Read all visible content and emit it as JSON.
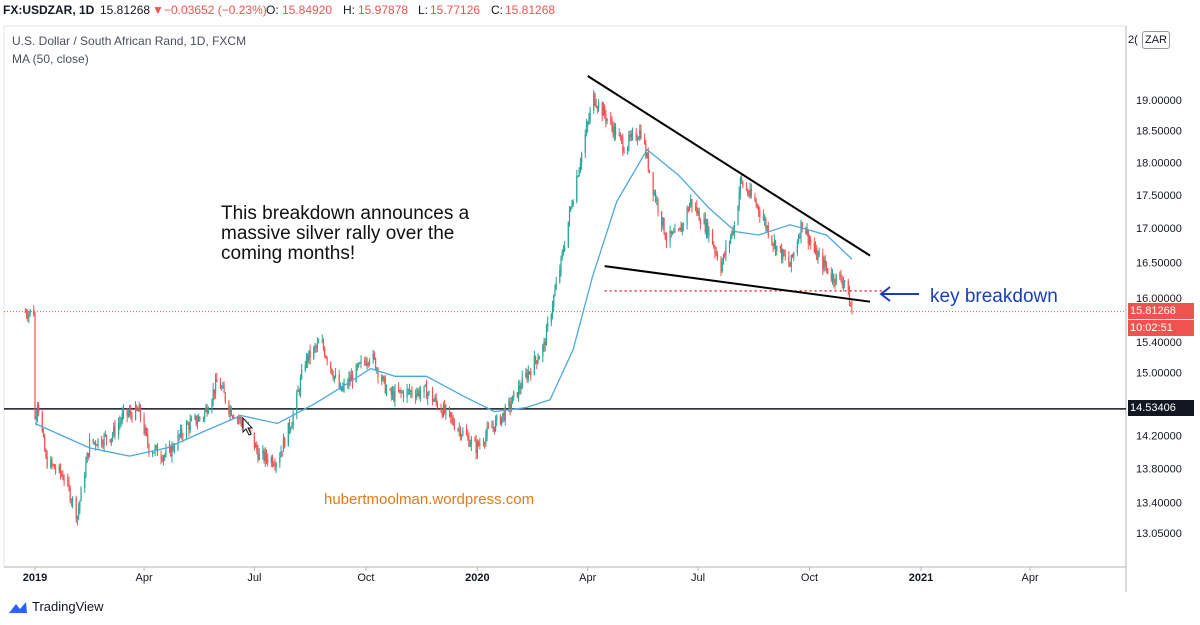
{
  "header": {
    "symbol": "FX:USDZAR, 1D",
    "last": "15.81268",
    "change_arrow": "▼",
    "change": "−0.03652 (−0.23%)",
    "o_label": "O:",
    "o_value": "15.84920",
    "h_label": "H:",
    "h_value": "15.97878",
    "l_label": "L:",
    "l_value": "15.77126",
    "c_label": "C:",
    "c_value": "15.81268"
  },
  "legend": {
    "title": "U.S. Dollar / South African Rand, 1D, FXCM",
    "indicator": "MA (50, close)"
  },
  "annotations": {
    "message_line1": "This breakdown announces a",
    "message_line2": "massive silver rally over the",
    "message_line3": "coming months!",
    "arrow_label": "key breakdown",
    "watermark": "hubertmoolman.wordpress.com"
  },
  "price_axis": {
    "currency": "ZAR",
    "top_cut_label": "2(",
    "ticks": [
      "19.00000",
      "18.50000",
      "18.00000",
      "17.50000",
      "17.00000",
      "16.50000",
      "16.00000",
      "15.40000",
      "15.00000",
      "14.20000",
      "13.80000",
      "13.40000",
      "13.05000"
    ]
  },
  "price_tags": {
    "last_price": "15.81268",
    "countdown": "10:02:51",
    "hline_price": "14.53406"
  },
  "time_axis": {
    "labels": [
      "2019",
      "Apr",
      "Jul",
      "Oct",
      "2020",
      "Apr",
      "Jul",
      "Oct",
      "2021",
      "Apr"
    ]
  },
  "branding": {
    "logo_text": "TradingView"
  },
  "colors": {
    "up": "#26a69a",
    "down": "#ef5350",
    "ma": "#4fa8dc",
    "annotation_blue": "#1a3fb5",
    "watermark": "#e07b1a",
    "hline": "#131722",
    "last_price": "#ef5350"
  },
  "chart_data": {
    "type": "candlestick",
    "symbol": "USDZAR",
    "interval": "1D",
    "y_range": [
      12.8,
      20.0
    ],
    "x_range": [
      "2018-12-15",
      "2021-06-30"
    ],
    "price_scale": "logarithmic",
    "ohlc_close_path": [
      [
        "2019-01-01",
        14.4
      ],
      [
        "2019-01-03",
        14.65
      ],
      [
        "2019-01-10",
        13.9
      ],
      [
        "2019-01-25",
        13.7
      ],
      [
        "2019-02-05",
        13.25
      ],
      [
        "2019-02-15",
        14.1
      ],
      [
        "2019-03-05",
        14.2
      ],
      [
        "2019-03-15",
        14.45
      ],
      [
        "2019-03-28",
        14.5
      ],
      [
        "2019-04-05",
        14.05
      ],
      [
        "2019-04-20",
        13.95
      ],
      [
        "2019-05-05",
        14.3
      ],
      [
        "2019-05-20",
        14.45
      ],
      [
        "2019-06-01",
        14.9
      ],
      [
        "2019-06-10",
        14.55
      ],
      [
        "2019-06-25",
        14.3
      ],
      [
        "2019-07-05",
        13.95
      ],
      [
        "2019-07-20",
        13.9
      ],
      [
        "2019-08-01",
        14.4
      ],
      [
        "2019-08-12",
        15.15
      ],
      [
        "2019-08-25",
        15.4
      ],
      [
        "2019-09-10",
        14.75
      ],
      [
        "2019-09-25",
        15.05
      ],
      [
        "2019-10-05",
        15.25
      ],
      [
        "2019-10-20",
        14.7
      ],
      [
        "2019-11-05",
        14.75
      ],
      [
        "2019-11-20",
        14.75
      ],
      [
        "2019-12-10",
        14.4
      ],
      [
        "2019-12-31",
        14.05
      ],
      [
        "2020-01-10",
        14.25
      ],
      [
        "2020-01-25",
        14.5
      ],
      [
        "2020-02-10",
        14.95
      ],
      [
        "2020-02-25",
        15.35
      ],
      [
        "2020-03-10",
        16.5
      ],
      [
        "2020-03-20",
        17.5
      ],
      [
        "2020-04-01",
        18.6
      ],
      [
        "2020-04-06",
        19.05
      ],
      [
        "2020-04-20",
        18.6
      ],
      [
        "2020-05-01",
        18.25
      ],
      [
        "2020-05-15",
        18.5
      ],
      [
        "2020-05-25",
        17.6
      ],
      [
        "2020-06-05",
        16.85
      ],
      [
        "2020-06-15",
        16.9
      ],
      [
        "2020-06-25",
        17.4
      ],
      [
        "2020-07-10",
        16.95
      ],
      [
        "2020-07-20",
        16.45
      ],
      [
        "2020-08-01",
        17.1
      ],
      [
        "2020-08-05",
        17.7
      ],
      [
        "2020-08-20",
        17.3
      ],
      [
        "2020-09-01",
        16.8
      ],
      [
        "2020-09-15",
        16.45
      ],
      [
        "2020-09-25",
        17.1
      ],
      [
        "2020-10-05",
        16.65
      ],
      [
        "2020-10-20",
        16.3
      ],
      [
        "2020-10-30",
        16.25
      ],
      [
        "2020-11-05",
        15.81
      ]
    ],
    "last_close": 15.81268,
    "open": 15.8492,
    "high": 15.97878,
    "low": 15.77126,
    "close": 15.81268,
    "moving_average": {
      "name": "MA (50, close)",
      "values": [
        [
          "2019-01-01",
          14.35
        ],
        [
          "2019-02-15",
          14.05
        ],
        [
          "2019-03-20",
          13.95
        ],
        [
          "2019-04-20",
          14.05
        ],
        [
          "2019-05-20",
          14.25
        ],
        [
          "2019-06-20",
          14.45
        ],
        [
          "2019-07-20",
          14.35
        ],
        [
          "2019-08-20",
          14.6
        ],
        [
          "2019-09-15",
          14.85
        ],
        [
          "2019-10-05",
          15.05
        ],
        [
          "2019-10-25",
          14.95
        ],
        [
          "2019-11-20",
          14.95
        ],
        [
          "2019-12-20",
          14.7
        ],
        [
          "2020-01-15",
          14.5
        ],
        [
          "2020-02-10",
          14.55
        ],
        [
          "2020-03-01",
          14.65
        ],
        [
          "2020-03-20",
          15.3
        ],
        [
          "2020-04-05",
          16.3
        ],
        [
          "2020-04-25",
          17.4
        ],
        [
          "2020-05-20",
          18.2
        ],
        [
          "2020-06-15",
          17.8
        ],
        [
          "2020-07-10",
          17.3
        ],
        [
          "2020-08-01",
          16.95
        ],
        [
          "2020-08-20",
          16.9
        ],
        [
          "2020-09-15",
          17.05
        ],
        [
          "2020-10-15",
          16.9
        ],
        [
          "2020-11-05",
          16.55
        ]
      ]
    },
    "drawings": {
      "upper_trendline": [
        [
          "2020-04-01",
          19.4
        ],
        [
          "2020-11-20",
          16.6
        ]
      ],
      "lower_trendline": [
        [
          "2020-04-15",
          16.45
        ],
        [
          "2020-11-20",
          15.95
        ]
      ],
      "breakdown_dotted_line": [
        [
          "2020-04-15",
          16.1
        ],
        [
          "2020-11-05",
          16.1
        ]
      ],
      "horizontal_line": 14.53406
    }
  }
}
